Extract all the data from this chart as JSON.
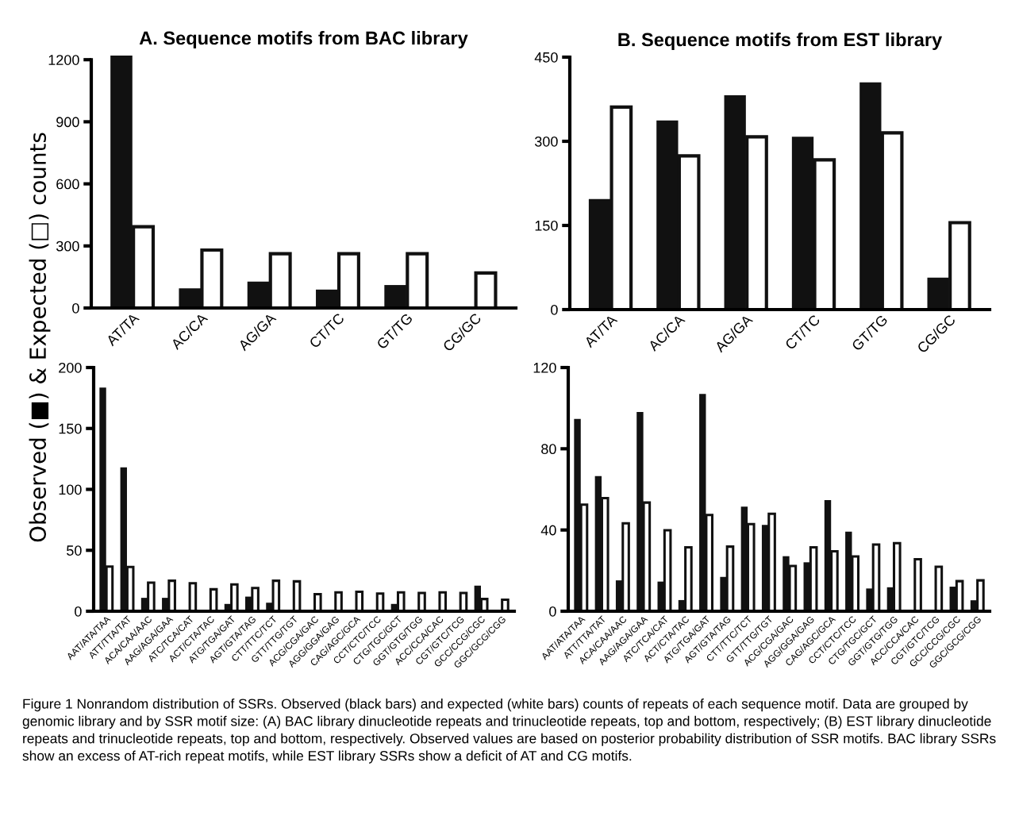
{
  "chart_data": [
    {
      "type": "bar",
      "title": "A. Sequence motifs from BAC library",
      "ylabel": "Observed (■) & Expected (□) counts",
      "categories": [
        "AT/TA",
        "AC/CA",
        "AG/GA",
        "CT/TC",
        "GT/TG",
        "CG/GC"
      ],
      "series": [
        {
          "color": "#111111",
          "values": [
            1220,
            95,
            128,
            89,
            111,
            0
          ]
        },
        {
          "color": "#ffffff",
          "values": [
            393,
            280,
            262,
            262,
            262,
            169
          ]
        }
      ],
      "ylim": [
        0,
        1220
      ],
      "yticks": [
        0,
        300,
        600,
        900,
        1200
      ],
      "grid": false,
      "legend": false,
      "annotations": [
        "Figure 1 Nonrandom distribution of SSRs. Observed (black bars) and expected (white bars) counts of repeats of each sequence motif. Data are grouped by genomic library and by SSR motif size: (A) BAC library dinucleotide repeats and trinucleotide repeats, top and bottom, respectively; (B) EST library dinucleotide repeats and trinucleotide repeats, top and bottom, respectively. Observed values are based on posterior probability distribution of SSR motifs. BAC library SSRs show an excess of AT-rich repeat motifs, while EST library SSRs show a deficit of AT and CG motifs."
      ]
    },
    {
      "type": "bar",
      "title": "B. Sequence motifs from EST library",
      "categories": [
        "AT/TA",
        "AC/CA",
        "AG/GA",
        "CT/TC",
        "GT/TG",
        "CG/GC"
      ],
      "series": [
        {
          "color": "#111111",
          "values": [
            197,
            337,
            382,
            308,
            405,
            57
          ]
        },
        {
          "color": "#ffffff",
          "values": [
            361,
            274,
            308,
            267,
            315,
            155
          ]
        }
      ],
      "ylim": [
        0,
        450
      ],
      "yticks": [
        0,
        150,
        300,
        450
      ],
      "grid": false,
      "legend": false
    },
    {
      "type": "bar",
      "categories": [
        "AAT/ATA/TAA",
        "ATT/TTA/TAT",
        "ACA/CAA/AAC",
        "AAG/AGA/GAA",
        "ATC/TCA/CAT",
        "ACT/CTA/TAC",
        "ATG/TGA/GAT",
        "AGT/GTA/TAG",
        "CTT/TTC/TCT",
        "GTT/TTG/TGT",
        "ACG/CGA/GAC",
        "AGG/GGA/GAG",
        "CAG/AGC/GCA",
        "CCT/CTC/TCC",
        "CTG/TGC/GCT",
        "GGT/GTG/TGG",
        "ACC/CCA/CAC",
        "CGT/GTC/TCG",
        "GCC/CCG/CGC",
        "GGC/GCG/CGG"
      ],
      "series": [
        {
          "color": "#111111",
          "values": [
            183.5,
            118,
            11,
            11,
            0,
            0,
            6,
            12,
            7,
            0,
            0,
            0,
            0,
            0,
            6,
            0,
            0,
            0,
            21,
            0
          ]
        },
        {
          "color": "#ffffff",
          "values": [
            36.7,
            36.3,
            23.5,
            25,
            23,
            18,
            22,
            19,
            25,
            24.5,
            14,
            15.5,
            16,
            14.5,
            15.5,
            15,
            15.5,
            15,
            10,
            9.5
          ]
        }
      ],
      "ylim": [
        0,
        200
      ],
      "yticks": [
        0,
        50,
        100,
        150,
        200
      ],
      "grid": false,
      "legend": false
    },
    {
      "type": "bar",
      "categories": [
        "AAT/ATA/TAA",
        "ATT/TTA/TAT",
        "ACA/CAA/AAC",
        "AAG/AGA/GAA",
        "ATC/TCA/CAT",
        "ACT/CTA/TAC",
        "ATG/TGA/GAT",
        "AGT/GTA/TAG",
        "CTT/TTC/TCT",
        "GTT/TTG/TGT",
        "ACG/CGA/GAC",
        "AGG/GGA/GAG",
        "CAG/AGC/GCA",
        "CCT/CTC/TCC",
        "CTG/TGC/GCT",
        "GGT/GTG/TGG",
        "ACC/CCA/CAC",
        "CGT/GTC/TCG",
        "GCC/CCG/CGC",
        "GGC/GCG/CGG"
      ],
      "series": [
        {
          "color": "#111111",
          "values": [
            94.7,
            66.5,
            15.2,
            98.1,
            14.6,
            5.5,
            107,
            16.9,
            51.5,
            42.5,
            27.1,
            24.1,
            54.7,
            39.2,
            11.2,
            11.8,
            0,
            0,
            12.1,
            5.4
          ]
        },
        {
          "color": "#ffffff",
          "values": [
            52.5,
            55.7,
            43.3,
            53.5,
            39.9,
            31.5,
            47.4,
            31.8,
            42.9,
            48,
            22.3,
            31.5,
            29.5,
            27,
            32.8,
            33.5,
            25.6,
            21.9,
            14.8,
            15.2
          ]
        }
      ],
      "ylim": [
        0,
        120
      ],
      "yticks": [
        0,
        40,
        80,
        120
      ],
      "grid": false,
      "legend": false
    }
  ]
}
